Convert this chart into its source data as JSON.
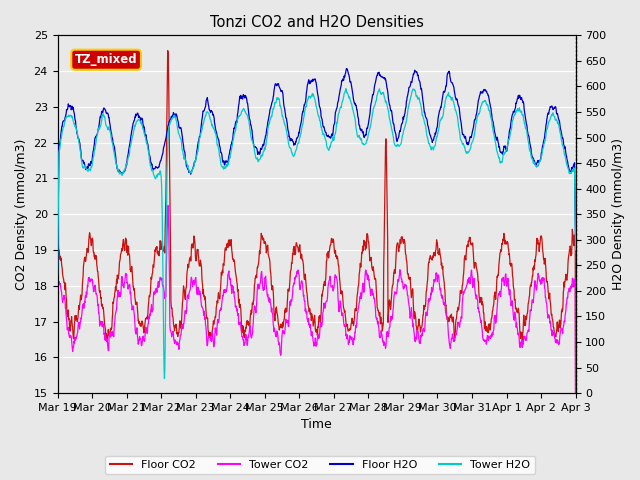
{
  "title": "Tonzi CO2 and H2O Densities",
  "xlabel": "Time",
  "ylabel_left": "CO2 Density (mmol/m3)",
  "ylabel_right": "H2O Density (mmol/m3)",
  "ylim_left": [
    15.0,
    25.0
  ],
  "ylim_right": [
    0,
    700
  ],
  "yticks_left": [
    15.0,
    16.0,
    17.0,
    18.0,
    19.0,
    20.0,
    21.0,
    22.0,
    23.0,
    24.0,
    25.0
  ],
  "yticks_right": [
    0,
    50,
    100,
    150,
    200,
    250,
    300,
    350,
    400,
    450,
    500,
    550,
    600,
    650,
    700
  ],
  "xtick_labels": [
    "Mar 19",
    "Mar 20",
    "Mar 21",
    "Mar 22",
    "Mar 23",
    "Mar 24",
    "Mar 25",
    "Mar 26",
    "Mar 27",
    "Mar 28",
    "Mar 29",
    "Mar 30",
    "Mar 31",
    "Apr 1",
    "Apr 2",
    "Apr 3"
  ],
  "annotation_text": "TZ_mixed",
  "annotation_bg": "#cc0000",
  "annotation_fg": "white",
  "colors": {
    "floor_co2": "#cc1111",
    "tower_co2": "#ff00ff",
    "floor_h2o": "#0000cc",
    "tower_h2o": "#00cccc"
  },
  "legend_labels": [
    "Floor CO2",
    "Tower CO2",
    "Floor H2O",
    "Tower H2O"
  ],
  "bg_color": "#e8e8e8",
  "n_days": 15,
  "pts_per_day": 96,
  "seed": 7
}
